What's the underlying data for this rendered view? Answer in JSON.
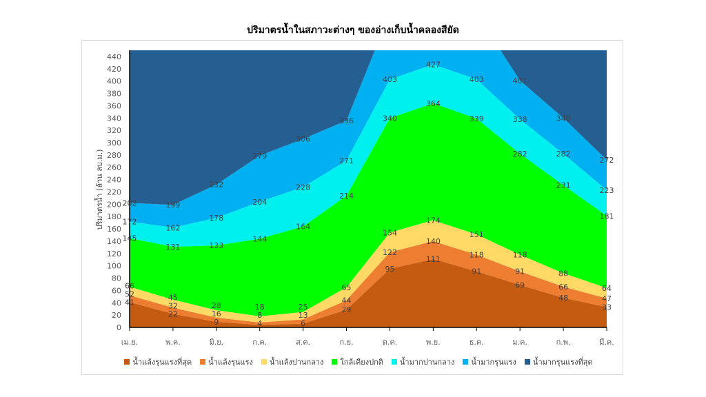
{
  "chart_data": {
    "type": "area",
    "title": "ปริมาตรน้ำในสภาวะต่างๆ ของอ่างเก็บน้ำคลองสียัด",
    "xlabel": "",
    "ylabel": "ปริมาตรน้ำ (ล้าน ลบ.ม.)",
    "ylim": [
      0,
      450
    ],
    "yticks": [
      0,
      20,
      40,
      60,
      80,
      100,
      120,
      140,
      160,
      180,
      200,
      220,
      240,
      260,
      280,
      300,
      320,
      340,
      360,
      380,
      400,
      420,
      440
    ],
    "categories": [
      "เม.ย.",
      "พ.ค.",
      "มิ.ย.",
      "ก.ค.",
      "ส.ค.",
      "ก.ย.",
      "ต.ค.",
      "พ.ย.",
      "ธ.ค.",
      "ม.ค.",
      "ก.พ.",
      "มี.ค."
    ],
    "legend_position": "bottom",
    "series": [
      {
        "name": "น้ำแล้งรุนแรงที่สุด",
        "color": "#C55A11",
        "values": [
          41,
          22,
          9,
          4,
          6,
          29,
          95,
          111,
          91,
          69,
          48,
          33
        ]
      },
      {
        "name": "น้ำแล้งรุนแรง",
        "color": "#ED7D31",
        "values": [
          52,
          32,
          16,
          8,
          13,
          44,
          122,
          140,
          118,
          91,
          66,
          47
        ]
      },
      {
        "name": "น้ำแล้งปานกลาง",
        "color": "#FFD966",
        "values": [
          66,
          45,
          28,
          18,
          25,
          65,
          154,
          174,
          151,
          118,
          88,
          64
        ]
      },
      {
        "name": "ใกล้เคียงปกติ",
        "color": "#00FF00",
        "values": [
          145,
          131,
          133,
          144,
          164,
          214,
          340,
          364,
          339,
          282,
          231,
          181
        ]
      },
      {
        "name": "น้ำมากปานกลาง",
        "color": "#00F0F0",
        "values": [
          172,
          162,
          178,
          204,
          228,
          271,
          403,
          427,
          403,
          338,
          282,
          223
        ]
      },
      {
        "name": "น้ำมากรุนแรง",
        "color": "#00B0F0",
        "values": [
          202,
          199,
          232,
          279,
          306,
          336,
          null,
          null,
          null,
          401,
          340,
          272
        ]
      },
      {
        "name": "น้ำมากรุนแรงที่สุด",
        "color": "#255E91",
        "values": [
          null,
          null,
          null,
          null,
          null,
          null,
          null,
          null,
          null,
          null,
          null,
          null
        ]
      }
    ]
  }
}
